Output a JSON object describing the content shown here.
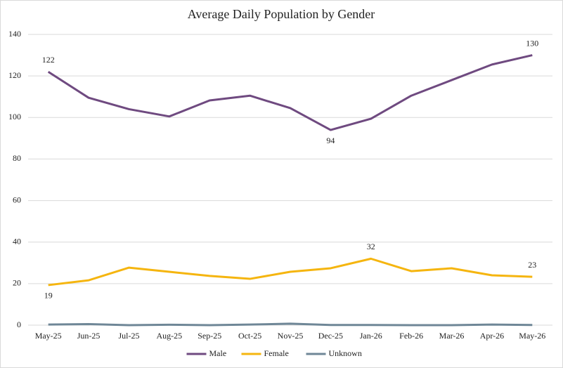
{
  "chart_data": {
    "type": "line",
    "title": "Average Daily Population by Gender",
    "categories": [
      "May-25",
      "Jun-25",
      "Jul-25",
      "Aug-25",
      "Sep-25",
      "Oct-25",
      "Nov-25",
      "Dec-25",
      "Jan-26",
      "Feb-26",
      "Mar-26",
      "Apr-26",
      "May-26"
    ],
    "series": [
      {
        "name": "Male",
        "color": "#6f4a80",
        "values": [
          122,
          109.5,
          104,
          100.5,
          108.2,
          110.5,
          104.5,
          94,
          99.4,
          110.5,
          118,
          125.5,
          130
        ],
        "value_labels": [
          "122",
          null,
          null,
          null,
          null,
          null,
          null,
          "94",
          null,
          null,
          null,
          null,
          "130"
        ]
      },
      {
        "name": "Female",
        "color": "#f5b50f",
        "values": [
          19.3,
          21.6,
          27.7,
          25.7,
          23.7,
          22.3,
          25.7,
          27.4,
          32,
          26,
          27.4,
          24,
          23.3
        ],
        "value_labels": [
          "19",
          null,
          null,
          null,
          null,
          null,
          null,
          null,
          "32",
          null,
          null,
          null,
          "23"
        ]
      },
      {
        "name": "Unknown",
        "color": "#6f8797",
        "values": [
          0.3,
          0.5,
          0,
          0.2,
          0,
          0.3,
          0.7,
          0.1,
          0.1,
          0,
          0,
          0.3,
          0.1
        ]
      }
    ],
    "ylim": [
      0,
      140
    ],
    "yticks": [
      0,
      20,
      40,
      60,
      80,
      100,
      120,
      140
    ],
    "grid": true,
    "legend": "bottom"
  }
}
